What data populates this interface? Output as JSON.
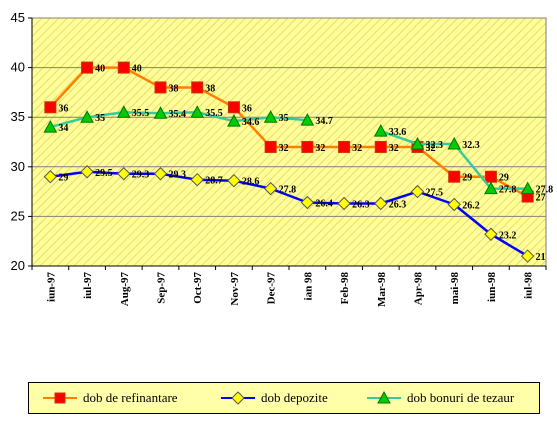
{
  "chart_data": {
    "type": "line",
    "categories": [
      "iun-97",
      "iul-97",
      "Aug-97",
      "Sep-97",
      "Oct-97",
      "Nov-97",
      "Dec-97",
      "ian 98",
      "Feb-98",
      "Mar-98",
      "Apr-98",
      "mai-98",
      "iun-98",
      "iul-98"
    ],
    "ylim": [
      20,
      45
    ],
    "yticks": [
      20,
      25,
      30,
      35,
      40,
      45
    ],
    "grid": "horizontal",
    "legend_position": "bottom",
    "series": [
      {
        "name": "dob de refinantare",
        "color": "#ff7f00",
        "marker": "square",
        "marker_color": "#ff0000",
        "values": [
          36,
          40,
          40,
          38,
          38,
          36,
          32,
          32,
          32,
          32,
          32,
          29,
          29,
          27
        ],
        "labels": [
          "36",
          "40",
          "40",
          "38",
          "38",
          "36",
          "32",
          "32",
          "32",
          "32",
          "32",
          "29",
          "29",
          "27"
        ]
      },
      {
        "name": "dob depozite",
        "color": "#0000ff",
        "marker": "diamond",
        "marker_color": "#ffff00",
        "values": [
          29,
          29.5,
          29.3,
          29.3,
          28.7,
          28.6,
          27.8,
          26.4,
          26.3,
          26.3,
          27.5,
          26.2,
          23.2,
          21
        ],
        "labels": [
          "29",
          "29.5",
          "29.3",
          "29.3",
          "28.7",
          "28.6",
          "27.8",
          "26.4",
          "26.3",
          "26.3",
          "27.5",
          "26.2",
          "23.2",
          "21"
        ]
      },
      {
        "name": "dob bonuri de tezaur",
        "color": "#33cc99",
        "marker": "triangle",
        "marker_color": "#00cc00",
        "values": [
          34,
          35,
          35.5,
          35.4,
          35.5,
          34.6,
          35,
          34.7,
          null,
          33.6,
          32.3,
          32.3,
          27.8,
          27.8
        ],
        "labels": [
          "34",
          "35",
          "35.5",
          "35.4",
          "35.5",
          "34.6",
          "35",
          "34.7",
          "",
          "33.6",
          "32.3",
          "32.3",
          "27.8",
          "27.8"
        ]
      }
    ]
  },
  "legend": {
    "items": [
      "dob de refinantare",
      "dob depozite",
      "dob bonuri de tezaur"
    ]
  }
}
